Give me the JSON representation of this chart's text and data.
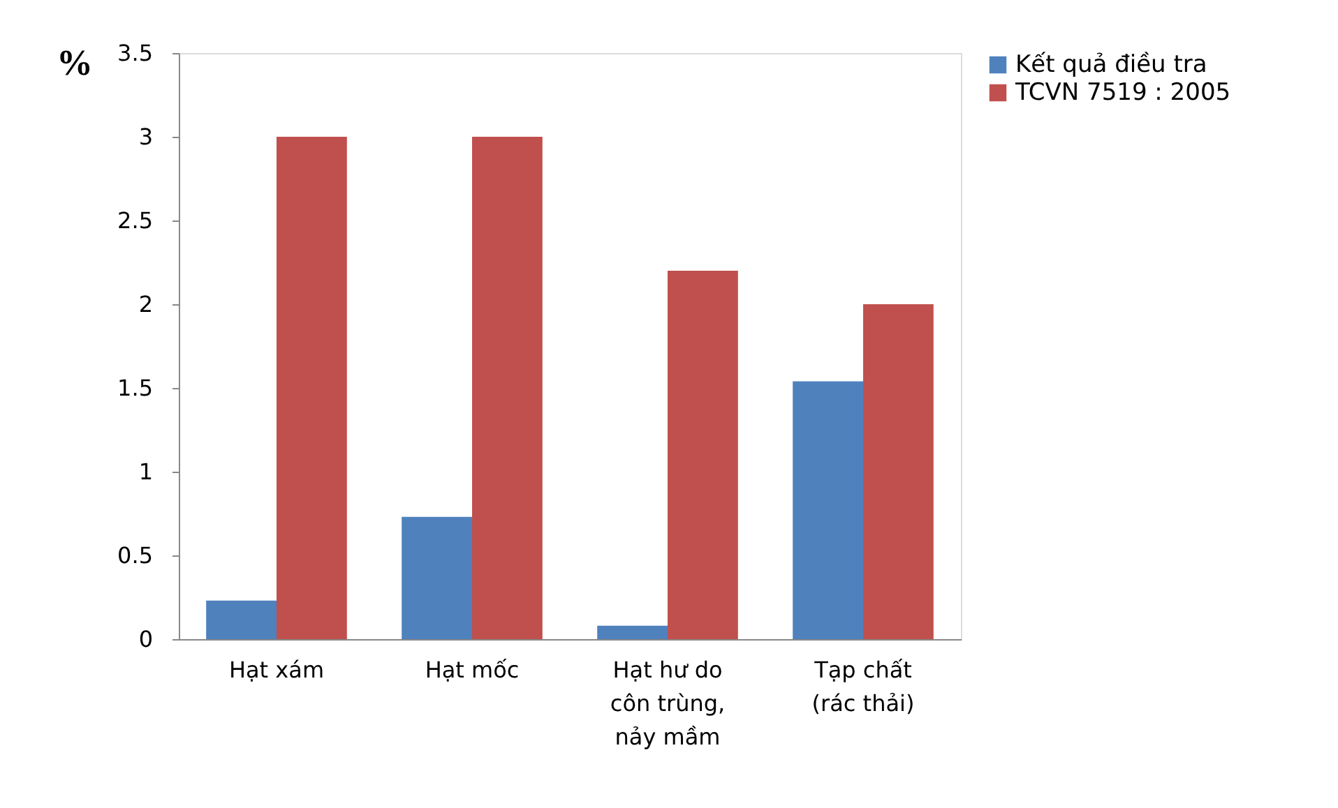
{
  "chart_data": {
    "type": "bar",
    "ylabel": "%",
    "categories": [
      "Hạt xám",
      "Hạt mốc",
      "Hạt hư do\ncôn trùng,\nnảy mầm",
      "Tạp chất\n(rác thải)"
    ],
    "series": [
      {
        "name": "Kết quả điều tra",
        "color": "#4f81bd",
        "values": [
          0.23,
          0.73,
          0.08,
          1.54
        ]
      },
      {
        "name": "TCVN 7519 : 2005",
        "color": "#c0504d",
        "values": [
          3,
          3,
          2.2,
          2
        ]
      }
    ],
    "ylim": [
      0,
      3.5
    ],
    "yticks": [
      0,
      0.5,
      1,
      1.5,
      2,
      2.5,
      3,
      3.5
    ],
    "grid": false,
    "legend": "right"
  }
}
